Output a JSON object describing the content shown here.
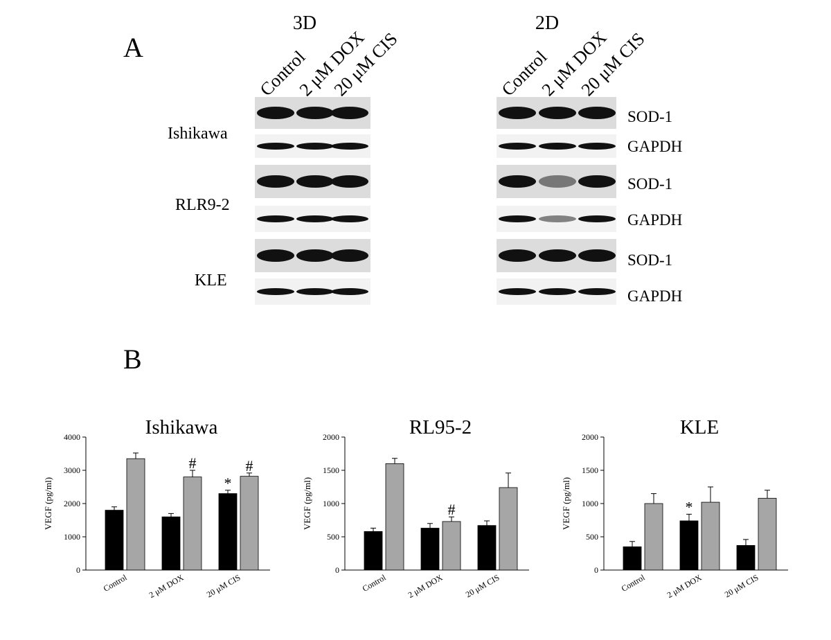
{
  "panel_a": {
    "label": "A",
    "groups": [
      {
        "title": "3D",
        "lanes": [
          "Control",
          "2 μM DOX",
          "20 μM CIS"
        ]
      },
      {
        "title": "2D",
        "lanes": [
          "Control",
          "2 μM DOX",
          "20 μM CIS"
        ]
      }
    ],
    "cell_lines": [
      "Ishikawa",
      "RLR9-2",
      "KLE"
    ],
    "proteins": [
      "SOD-1",
      "GAPDH",
      "SOD-1",
      "GAPDH",
      "SOD-1",
      "GAPDH"
    ]
  },
  "panel_b": {
    "label": "B"
  },
  "chart_data": [
    {
      "type": "bar",
      "title": "Ishikawa",
      "ylabel": "VEGF (pg/ml)",
      "categories": [
        "Control",
        "2 μM DOX",
        "20 μM CIS"
      ],
      "series": [
        {
          "color": "#000000",
          "values": [
            1800,
            1600,
            2300
          ],
          "errors": [
            100,
            100,
            100
          ],
          "markers": [
            null,
            null,
            "*"
          ]
        },
        {
          "color": "#a6a6a6",
          "values": [
            3350,
            2800,
            2820
          ],
          "errors": [
            170,
            200,
            100
          ],
          "markers": [
            null,
            "#",
            "#"
          ]
        }
      ],
      "ylim": [
        0,
        4000
      ],
      "yticks": [
        0,
        1000,
        2000,
        3000,
        4000
      ]
    },
    {
      "type": "bar",
      "title": "RL95-2",
      "ylabel": "VEGF (pg/ml)",
      "categories": [
        "Control",
        "2 μM DOX",
        "20 μM CIS"
      ],
      "series": [
        {
          "color": "#000000",
          "values": [
            580,
            630,
            670
          ],
          "errors": [
            50,
            70,
            70
          ],
          "markers": [
            null,
            null,
            null
          ]
        },
        {
          "color": "#a6a6a6",
          "values": [
            1600,
            730,
            1240
          ],
          "errors": [
            80,
            70,
            220
          ],
          "markers": [
            null,
            "#",
            null
          ]
        }
      ],
      "ylim": [
        0,
        2000
      ],
      "yticks": [
        0,
        500,
        1000,
        1500,
        2000
      ]
    },
    {
      "type": "bar",
      "title": "KLE",
      "ylabel": "VEGF (pg/ml)",
      "categories": [
        "Control",
        "2 μM DOX",
        "20 μM CIS"
      ],
      "series": [
        {
          "color": "#000000",
          "values": [
            350,
            740,
            370
          ],
          "errors": [
            80,
            100,
            90
          ],
          "markers": [
            null,
            "*",
            null
          ]
        },
        {
          "color": "#a6a6a6",
          "values": [
            1000,
            1020,
            1080
          ],
          "errors": [
            150,
            230,
            120
          ],
          "markers": [
            null,
            null,
            null
          ]
        }
      ],
      "ylim": [
        0,
        2000
      ],
      "yticks": [
        0,
        500,
        1000,
        1500,
        2000
      ]
    }
  ]
}
